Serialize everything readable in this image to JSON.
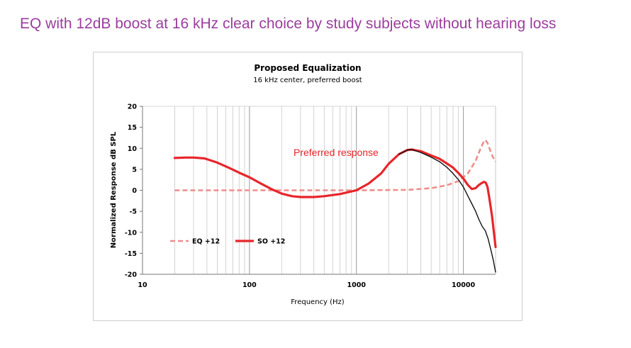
{
  "slide": {
    "title": "EQ with 12dB boost at 16 kHz clear choice by study subjects without hearing loss"
  },
  "chart_data": {
    "type": "line",
    "title": "Proposed Equalization",
    "subtitle": "16 kHz center, preferred boost",
    "xlabel": "Frequency (Hz)",
    "ylabel": "Normalized Response dB SPL",
    "x_scale": "log",
    "xlim": [
      10,
      20000
    ],
    "ylim": [
      -20,
      20
    ],
    "x_ticks": [
      "10",
      "100",
      "1000",
      "10000"
    ],
    "y_ticks": [
      "20",
      "15",
      "10",
      "5",
      "0",
      "-5",
      "-10",
      "-15",
      "-20"
    ],
    "grid": "vertical",
    "legend_placement": "bottom-left",
    "annotation": "Preferred response",
    "series": [
      {
        "name": "EQ +12",
        "style": "dashed",
        "color": "#f08c8c",
        "points": [
          [
            20,
            0
          ],
          [
            100,
            0
          ],
          [
            500,
            0
          ],
          [
            1000,
            0
          ],
          [
            3000,
            0.1
          ],
          [
            5000,
            0.5
          ],
          [
            7000,
            1.2
          ],
          [
            9000,
            2.2
          ],
          [
            11000,
            4
          ],
          [
            13000,
            7
          ],
          [
            14500,
            10
          ],
          [
            15500,
            11.6
          ],
          [
            16000,
            12
          ],
          [
            16800,
            11.3
          ],
          [
            17800,
            9.5
          ],
          [
            18800,
            8
          ],
          [
            20000,
            6.8
          ]
        ]
      },
      {
        "name": "SO +12",
        "style": "solid",
        "color": "#e8252b",
        "points": [
          [
            20,
            7.7
          ],
          [
            25,
            7.8
          ],
          [
            30,
            7.8
          ],
          [
            38,
            7.6
          ],
          [
            50,
            6.6
          ],
          [
            65,
            5.3
          ],
          [
            80,
            4.2
          ],
          [
            100,
            3.1
          ],
          [
            130,
            1.5
          ],
          [
            160,
            0.3
          ],
          [
            200,
            -0.8
          ],
          [
            250,
            -1.4
          ],
          [
            300,
            -1.6
          ],
          [
            400,
            -1.6
          ],
          [
            500,
            -1.4
          ],
          [
            700,
            -0.9
          ],
          [
            1000,
            0
          ],
          [
            1300,
            1.6
          ],
          [
            1700,
            4
          ],
          [
            2000,
            6.3
          ],
          [
            2500,
            8.6
          ],
          [
            3000,
            9.6
          ],
          [
            3300,
            9.7
          ],
          [
            4000,
            9.3
          ],
          [
            5000,
            8.3
          ],
          [
            6000,
            7.5
          ],
          [
            7000,
            6.4
          ],
          [
            8000,
            5.4
          ],
          [
            9000,
            4.1
          ],
          [
            10000,
            2.8
          ],
          [
            11000,
            1.3
          ],
          [
            12000,
            0.3
          ],
          [
            13000,
            0.5
          ],
          [
            14000,
            1.3
          ],
          [
            15000,
            1.8
          ],
          [
            15600,
            2.0
          ],
          [
            16200,
            1.8
          ],
          [
            16800,
            0.8
          ],
          [
            17500,
            -2
          ],
          [
            18500,
            -6
          ],
          [
            20000,
            -13.5
          ]
        ]
      },
      {
        "style": "solid",
        "color": "#111111",
        "points": [
          [
            2500,
            8.6
          ],
          [
            3000,
            9.6
          ],
          [
            3300,
            9.7
          ],
          [
            4000,
            9.0
          ],
          [
            5000,
            7.9
          ],
          [
            6000,
            6.8
          ],
          [
            7000,
            5.5
          ],
          [
            8000,
            4.0
          ],
          [
            9000,
            2.5
          ],
          [
            10000,
            0.8
          ],
          [
            11000,
            -1.3
          ],
          [
            12000,
            -3.2
          ],
          [
            13000,
            -5
          ],
          [
            14000,
            -7
          ],
          [
            15000,
            -8.6
          ],
          [
            16000,
            -9.6
          ],
          [
            17000,
            -11.5
          ],
          [
            18000,
            -14
          ],
          [
            19000,
            -16.5
          ],
          [
            20000,
            -19.5
          ]
        ]
      }
    ]
  }
}
